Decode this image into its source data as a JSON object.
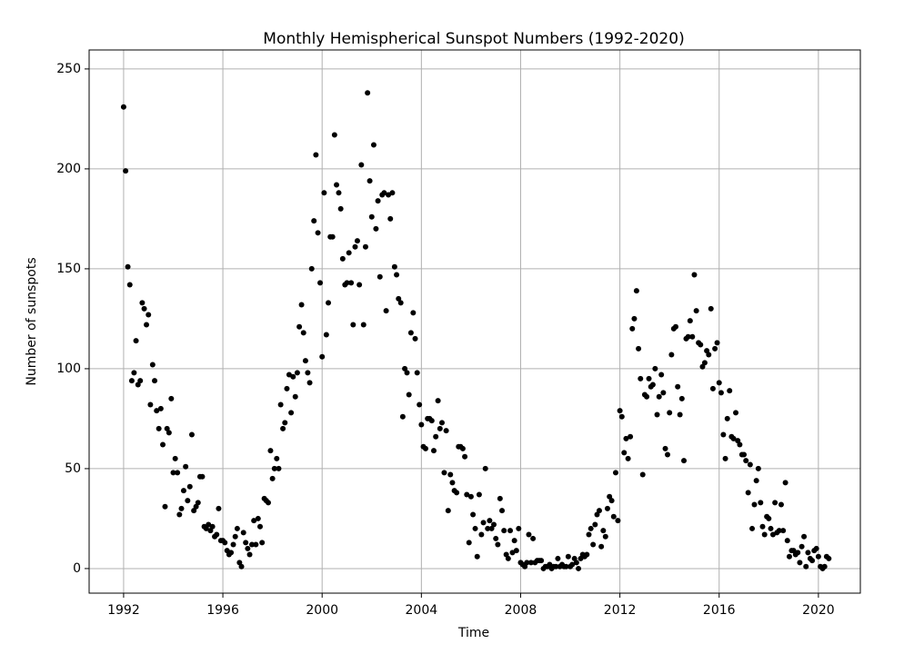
{
  "chart_data": {
    "type": "scatter",
    "title": "Monthly Hemispherical Sunspot Numbers (1992-2020)",
    "x_label": "Time",
    "y_label": "Number of sunspots",
    "xlim": [
      1990.61,
      2021.69
    ],
    "ylim": [
      -12.3,
      259.5
    ],
    "xticks": [
      1992,
      1996,
      2000,
      2004,
      2008,
      2012,
      2016,
      2020
    ],
    "yticks": [
      0,
      50,
      100,
      150,
      200,
      250
    ],
    "grid": true,
    "color": "#000000",
    "x": [
      1992.0,
      1992.08,
      1992.17,
      1992.25,
      1992.33,
      1992.42,
      1992.5,
      1992.58,
      1992.67,
      1992.75,
      1992.83,
      1992.92,
      1993.0,
      1993.08,
      1993.17,
      1993.25,
      1993.33,
      1993.42,
      1993.5,
      1993.58,
      1993.67,
      1993.75,
      1993.83,
      1993.92,
      1994.0,
      1994.08,
      1994.17,
      1994.25,
      1994.33,
      1994.42,
      1994.5,
      1994.58,
      1994.67,
      1994.75,
      1994.83,
      1994.92,
      1995.0,
      1995.08,
      1995.17,
      1995.25,
      1995.33,
      1995.42,
      1995.5,
      1995.58,
      1995.67,
      1995.75,
      1995.83,
      1995.92,
      1996.0,
      1996.08,
      1996.17,
      1996.25,
      1996.33,
      1996.42,
      1996.5,
      1996.58,
      1996.67,
      1996.75,
      1996.83,
      1996.92,
      1997.0,
      1997.08,
      1997.17,
      1997.25,
      1997.33,
      1997.42,
      1997.5,
      1997.58,
      1997.67,
      1997.75,
      1997.83,
      1997.92,
      1998.0,
      1998.08,
      1998.17,
      1998.25,
      1998.33,
      1998.42,
      1998.5,
      1998.58,
      1998.67,
      1998.75,
      1998.83,
      1998.92,
      1999.0,
      1999.08,
      1999.17,
      1999.25,
      1999.33,
      1999.42,
      1999.5,
      1999.58,
      1999.67,
      1999.75,
      1999.83,
      1999.92,
      2000.0,
      2000.08,
      2000.17,
      2000.25,
      2000.33,
      2000.42,
      2000.5,
      2000.58,
      2000.67,
      2000.75,
      2000.83,
      2000.92,
      2001.0,
      2001.08,
      2001.17,
      2001.25,
      2001.33,
      2001.42,
      2001.5,
      2001.58,
      2001.67,
      2001.75,
      2001.83,
      2001.92,
      2002.0,
      2002.08,
      2002.17,
      2002.25,
      2002.33,
      2002.42,
      2002.5,
      2002.58,
      2002.67,
      2002.75,
      2002.83,
      2002.92,
      2003.0,
      2003.08,
      2003.17,
      2003.25,
      2003.33,
      2003.42,
      2003.5,
      2003.58,
      2003.67,
      2003.75,
      2003.83,
      2003.92,
      2004.0,
      2004.08,
      2004.17,
      2004.25,
      2004.33,
      2004.42,
      2004.5,
      2004.58,
      2004.67,
      2004.75,
      2004.83,
      2004.92,
      2005.0,
      2005.08,
      2005.17,
      2005.25,
      2005.33,
      2005.42,
      2005.5,
      2005.58,
      2005.67,
      2005.75,
      2005.83,
      2005.92,
      2006.0,
      2006.08,
      2006.17,
      2006.25,
      2006.33,
      2006.42,
      2006.5,
      2006.58,
      2006.67,
      2006.75,
      2006.83,
      2006.92,
      2007.0,
      2007.08,
      2007.17,
      2007.25,
      2007.33,
      2007.42,
      2007.5,
      2007.58,
      2007.67,
      2007.75,
      2007.83,
      2007.92,
      2008.0,
      2008.08,
      2008.17,
      2008.25,
      2008.33,
      2008.42,
      2008.5,
      2008.58,
      2008.67,
      2008.75,
      2008.83,
      2008.92,
      2009.0,
      2009.08,
      2009.17,
      2009.25,
      2009.33,
      2009.42,
      2009.5,
      2009.58,
      2009.67,
      2009.75,
      2009.83,
      2009.92,
      2010.0,
      2010.08,
      2010.17,
      2010.25,
      2010.33,
      2010.42,
      2010.5,
      2010.58,
      2010.67,
      2010.75,
      2010.83,
      2010.92,
      2011.0,
      2011.08,
      2011.17,
      2011.25,
      2011.33,
      2011.42,
      2011.5,
      2011.58,
      2011.67,
      2011.75,
      2011.83,
      2011.92,
      2012.0,
      2012.08,
      2012.17,
      2012.25,
      2012.33,
      2012.42,
      2012.5,
      2012.58,
      2012.67,
      2012.75,
      2012.83,
      2012.92,
      2013.0,
      2013.08,
      2013.17,
      2013.25,
      2013.33,
      2013.42,
      2013.5,
      2013.58,
      2013.67,
      2013.75,
      2013.83,
      2013.92,
      2014.0,
      2014.08,
      2014.17,
      2014.25,
      2014.33,
      2014.42,
      2014.5,
      2014.58,
      2014.67,
      2014.75,
      2014.83,
      2014.92,
      2015.0,
      2015.08,
      2015.17,
      2015.25,
      2015.33,
      2015.42,
      2015.5,
      2015.58,
      2015.67,
      2015.75,
      2015.83,
      2015.92,
      2016.0,
      2016.08,
      2016.17,
      2016.25,
      2016.33,
      2016.42,
      2016.5,
      2016.58,
      2016.67,
      2016.75,
      2016.83,
      2016.92,
      2017.0,
      2017.08,
      2017.17,
      2017.25,
      2017.33,
      2017.42,
      2017.5,
      2017.58,
      2017.67,
      2017.75,
      2017.83,
      2017.92,
      2018.0,
      2018.08,
      2018.17,
      2018.25,
      2018.33,
      2018.42,
      2018.5,
      2018.58,
      2018.67,
      2018.75,
      2018.83,
      2018.92,
      2019.0,
      2019.08,
      2019.17,
      2019.25,
      2019.33,
      2019.42,
      2019.5,
      2019.58,
      2019.67,
      2019.75,
      2019.83,
      2019.92,
      2020.0,
      2020.08,
      2020.17,
      2020.25,
      2020.33,
      2020.42
    ],
    "values": [
      231,
      199,
      151,
      142,
      94,
      98,
      114,
      92,
      94,
      133,
      130,
      122,
      127,
      82,
      102,
      94,
      79,
      70,
      80,
      62,
      31,
      70,
      68,
      85,
      48,
      55,
      48,
      27,
      30,
      39,
      51,
      34,
      41,
      67,
      29,
      31,
      33,
      46,
      46,
      21,
      20,
      22,
      19,
      21,
      16,
      17,
      30,
      14,
      14,
      13,
      9,
      7,
      8,
      12,
      16,
      20,
      3,
      1,
      18,
      13,
      10,
      7,
      12,
      24,
      12,
      25,
      21,
      13,
      35,
      34,
      33,
      59,
      45,
      50,
      55,
      50,
      82,
      70,
      73,
      90,
      97,
      78,
      96,
      86,
      98,
      121,
      132,
      118,
      104,
      98,
      93,
      150,
      174,
      207,
      168,
      143,
      106,
      188,
      117,
      133,
      166,
      166,
      217,
      192,
      188,
      180,
      155,
      142,
      143,
      158,
      143,
      122,
      161,
      164,
      142,
      202,
      122,
      161,
      238,
      194,
      176,
      212,
      170,
      184,
      146,
      187,
      188,
      129,
      187,
      175,
      188,
      151,
      147,
      135,
      133,
      76,
      100,
      98,
      87,
      118,
      128,
      115,
      98,
      82,
      72,
      61,
      60,
      75,
      75,
      74,
      59,
      66,
      84,
      70,
      73,
      48,
      69,
      29,
      47,
      43,
      39,
      38,
      61,
      61,
      60,
      56,
      37,
      13,
      36,
      27,
      20,
      6,
      37,
      17,
      23,
      50,
      20,
      24,
      20,
      22,
      15,
      12,
      35,
      29,
      19,
      7,
      5,
      19,
      8,
      14,
      9,
      20,
      3,
      2,
      1,
      3,
      17,
      3,
      15,
      3,
      4,
      4,
      4,
      0,
      1,
      1,
      2,
      0,
      1,
      1,
      5,
      1,
      2,
      1,
      1,
      6,
      1,
      2,
      5,
      3,
      0,
      5,
      7,
      6,
      7,
      17,
      20,
      12,
      22,
      27,
      29,
      11,
      19,
      16,
      30,
      36,
      34,
      26,
      48,
      24,
      79,
      76,
      58,
      65,
      55,
      66,
      120,
      125,
      139,
      110,
      95,
      47,
      87,
      86,
      95,
      91,
      92,
      100,
      77,
      86,
      97,
      88,
      60,
      57,
      78,
      107,
      120,
      121,
      91,
      77,
      85,
      54,
      115,
      116,
      124,
      116,
      147,
      129,
      113,
      112,
      101,
      103,
      109,
      107,
      130,
      90,
      110,
      113,
      93,
      88,
      67,
      55,
      75,
      89,
      66,
      65,
      78,
      64,
      62,
      57,
      57,
      54,
      38,
      52,
      20,
      32,
      44,
      50,
      33,
      21,
      17,
      26,
      25,
      20,
      17,
      33,
      18,
      19,
      32,
      19,
      43,
      14,
      6,
      9,
      9,
      7,
      8,
      3,
      11,
      16,
      1,
      8,
      5,
      4,
      9,
      10,
      6,
      1,
      0,
      1,
      6,
      5
    ]
  }
}
